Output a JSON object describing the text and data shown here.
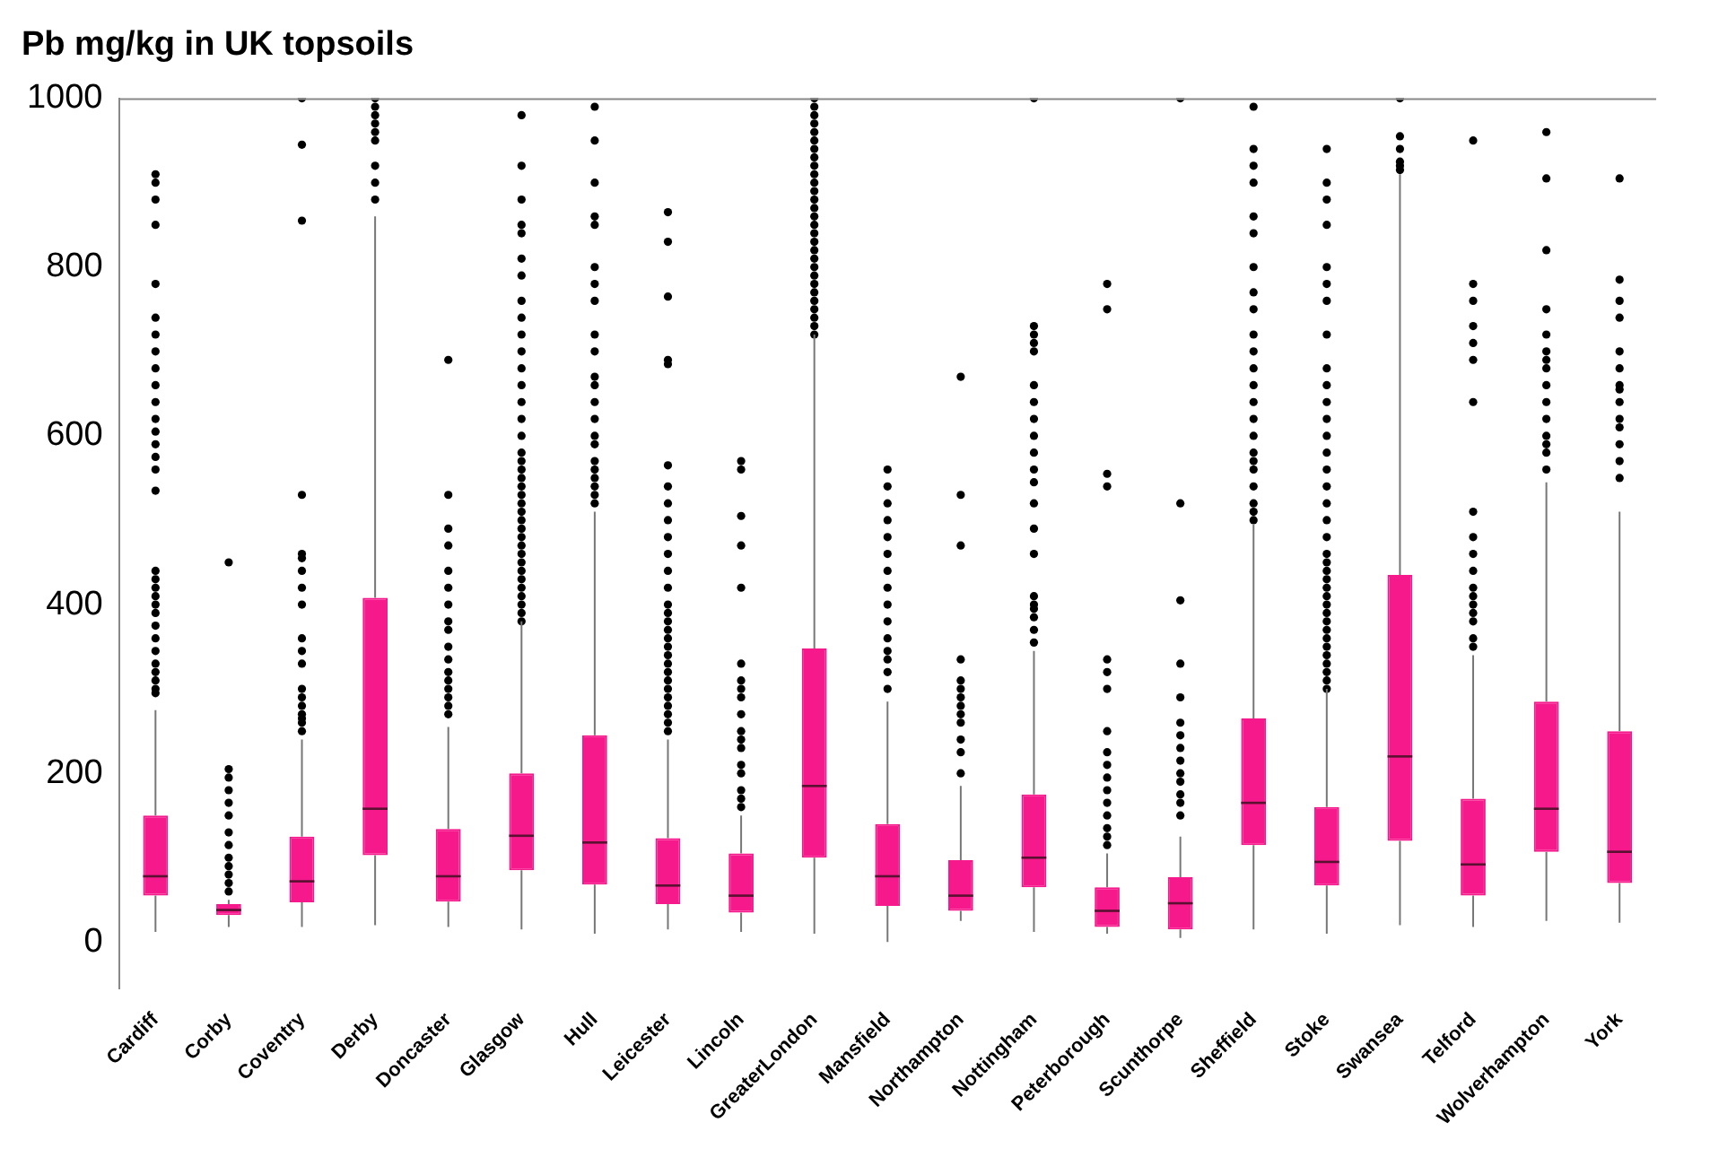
{
  "chart_data": {
    "type": "box",
    "title": "Pb mg/kg in UK topsoils",
    "categories": [
      "Cardiff",
      "Corby",
      "Coventry",
      "Derby",
      "Doncaster",
      "Glasgow",
      "Hull",
      "Leicester",
      "Lincoln",
      "GreaterLondon",
      "Mansfield",
      "Northampton",
      "Nottingham",
      "Peterborough",
      "Scunthorpe",
      "Sheffield",
      "Stoke",
      "Swansea",
      "Telford",
      "Wolverhampton",
      "York"
    ],
    "color": "#f5198c",
    "ylim": [
      -55,
      1000
    ],
    "yticks": [
      0,
      200,
      400,
      600,
      800,
      1000
    ],
    "grid": false,
    "legend": false,
    "boxes": [
      {
        "low": 12,
        "q1": 55,
        "median": 78,
        "q3": 150,
        "high": 275,
        "outliers": [
          295,
          300,
          310,
          320,
          330,
          345,
          360,
          375,
          390,
          400,
          410,
          420,
          430,
          440,
          535,
          560,
          575,
          590,
          605,
          620,
          640,
          660,
          680,
          700,
          720,
          740,
          780,
          850,
          880,
          900,
          910
        ]
      },
      {
        "low": 18,
        "q1": 32,
        "median": 38,
        "q3": 45,
        "high": 50,
        "outliers": [
          60,
          70,
          80,
          90,
          100,
          115,
          130,
          150,
          165,
          180,
          195,
          205,
          450
        ]
      },
      {
        "low": 18,
        "q1": 47,
        "median": 72,
        "q3": 125,
        "high": 240,
        "outliers": [
          250,
          260,
          265,
          270,
          280,
          290,
          300,
          330,
          345,
          360,
          400,
          420,
          440,
          455,
          460,
          530,
          855,
          945,
          1000
        ]
      },
      {
        "low": 20,
        "q1": 103,
        "median": 158,
        "q3": 408,
        "high": 860,
        "outliers": [
          880,
          900,
          920,
          950,
          960,
          970,
          980,
          990,
          1000
        ]
      },
      {
        "low": 18,
        "q1": 48,
        "median": 78,
        "q3": 134,
        "high": 255,
        "outliers": [
          270,
          280,
          290,
          300,
          310,
          320,
          335,
          350,
          370,
          380,
          400,
          420,
          440,
          470,
          490,
          530,
          690
        ]
      },
      {
        "low": 15,
        "q1": 85,
        "median": 126,
        "q3": 200,
        "high": 380,
        "outliers": [
          380,
          390,
          400,
          410,
          420,
          430,
          440,
          450,
          460,
          470,
          480,
          490,
          500,
          510,
          520,
          530,
          540,
          550,
          560,
          570,
          580,
          600,
          620,
          640,
          660,
          680,
          700,
          720,
          740,
          760,
          790,
          810,
          840,
          850,
          880,
          920,
          980
        ]
      },
      {
        "low": 10,
        "q1": 68,
        "median": 118,
        "q3": 245,
        "high": 510,
        "outliers": [
          520,
          530,
          540,
          550,
          560,
          570,
          590,
          600,
          620,
          640,
          660,
          670,
          700,
          720,
          760,
          780,
          800,
          850,
          860,
          900,
          950,
          990
        ]
      },
      {
        "low": 15,
        "q1": 45,
        "median": 67,
        "q3": 123,
        "high": 240,
        "outliers": [
          250,
          260,
          270,
          280,
          290,
          300,
          310,
          320,
          330,
          340,
          350,
          360,
          370,
          380,
          390,
          400,
          420,
          440,
          460,
          480,
          500,
          520,
          540,
          565,
          685,
          690,
          765,
          830,
          865
        ]
      },
      {
        "low": 12,
        "q1": 35,
        "median": 55,
        "q3": 105,
        "high": 150,
        "outliers": [
          160,
          170,
          180,
          200,
          210,
          230,
          240,
          250,
          270,
          290,
          300,
          310,
          330,
          420,
          470,
          505,
          560,
          570
        ]
      },
      {
        "low": 10,
        "q1": 100,
        "median": 185,
        "q3": 348,
        "high": 720,
        "outliers": [
          720,
          730,
          740,
          750,
          760,
          770,
          780,
          790,
          800,
          810,
          820,
          830,
          840,
          850,
          860,
          870,
          880,
          890,
          900,
          910,
          920,
          930,
          940,
          950,
          960,
          970,
          980,
          990,
          1000
        ]
      },
      {
        "low": 0,
        "q1": 43,
        "median": 78,
        "q3": 140,
        "high": 285,
        "outliers": [
          300,
          320,
          335,
          345,
          360,
          380,
          400,
          420,
          440,
          460,
          480,
          500,
          520,
          540,
          560
        ]
      },
      {
        "low": 25,
        "q1": 37,
        "median": 55,
        "q3": 97,
        "high": 185,
        "outliers": [
          200,
          225,
          240,
          260,
          270,
          280,
          290,
          300,
          310,
          335,
          470,
          530,
          670
        ]
      },
      {
        "low": 12,
        "q1": 65,
        "median": 100,
        "q3": 175,
        "high": 345,
        "outliers": [
          355,
          370,
          385,
          395,
          400,
          410,
          460,
          490,
          520,
          545,
          560,
          580,
          600,
          620,
          640,
          660,
          700,
          710,
          720,
          730,
          1000
        ]
      },
      {
        "low": 10,
        "q1": 18,
        "median": 37,
        "q3": 65,
        "high": 105,
        "outliers": [
          115,
          125,
          135,
          150,
          165,
          180,
          195,
          210,
          225,
          250,
          300,
          320,
          335,
          540,
          555,
          750,
          780
        ]
      },
      {
        "low": 5,
        "q1": 15,
        "median": 46,
        "q3": 77,
        "high": 125,
        "outliers": [
          150,
          165,
          175,
          190,
          200,
          215,
          230,
          245,
          260,
          290,
          330,
          405,
          520,
          1000
        ]
      },
      {
        "low": 15,
        "q1": 115,
        "median": 165,
        "q3": 265,
        "high": 495,
        "outliers": [
          500,
          510,
          520,
          540,
          560,
          570,
          580,
          600,
          620,
          640,
          660,
          680,
          700,
          720,
          750,
          770,
          800,
          840,
          860,
          900,
          920,
          940,
          990
        ]
      },
      {
        "low": 10,
        "q1": 67,
        "median": 95,
        "q3": 160,
        "high": 300,
        "outliers": [
          300,
          310,
          320,
          330,
          340,
          350,
          360,
          370,
          380,
          390,
          400,
          410,
          420,
          430,
          440,
          450,
          460,
          480,
          500,
          520,
          540,
          560,
          580,
          600,
          620,
          640,
          660,
          680,
          720,
          760,
          780,
          800,
          850,
          880,
          900,
          940
        ]
      },
      {
        "low": 20,
        "q1": 120,
        "median": 220,
        "q3": 435,
        "high": 910,
        "outliers": [
          915,
          920,
          925,
          940,
          955,
          1000
        ]
      },
      {
        "low": 18,
        "q1": 55,
        "median": 92,
        "q3": 170,
        "high": 340,
        "outliers": [
          350,
          360,
          380,
          390,
          400,
          410,
          420,
          440,
          460,
          480,
          510,
          640,
          690,
          710,
          730,
          760,
          780,
          950
        ]
      },
      {
        "low": 25,
        "q1": 107,
        "median": 158,
        "q3": 285,
        "high": 545,
        "outliers": [
          560,
          580,
          590,
          600,
          620,
          640,
          660,
          680,
          690,
          700,
          720,
          750,
          820,
          905,
          960
        ]
      },
      {
        "low": 23,
        "q1": 70,
        "median": 107,
        "q3": 250,
        "high": 510,
        "outliers": [
          550,
          570,
          590,
          610,
          620,
          640,
          655,
          660,
          680,
          700,
          740,
          760,
          785,
          905
        ]
      }
    ]
  }
}
